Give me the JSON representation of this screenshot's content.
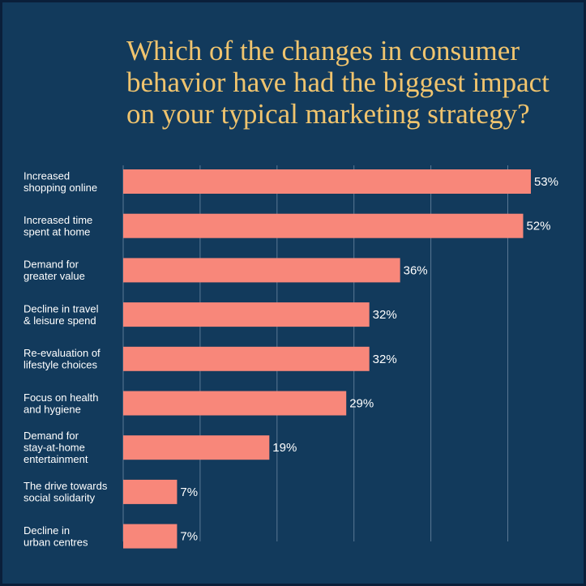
{
  "chart_data": {
    "type": "bar",
    "orientation": "horizontal",
    "title_lines": [
      "Which of the changes in consumer",
      "behavior have had the biggest impact",
      "on your typical marketing strategy?"
    ],
    "categories": [
      [
        "Increased",
        "shopping online"
      ],
      [
        "Increased time",
        "spent at home"
      ],
      [
        "Demand for",
        "greater value"
      ],
      [
        "Decline in travel",
        "& leisure spend"
      ],
      [
        "Re-evaluation of",
        "lifestyle choices"
      ],
      [
        "Focus on health",
        "and hygiene"
      ],
      [
        "Demand for",
        "stay-at-home",
        "entertainment"
      ],
      [
        "The drive towards",
        "social solidarity"
      ],
      [
        "Decline in",
        "urban centres"
      ]
    ],
    "values": [
      53,
      52,
      36,
      32,
      32,
      29,
      19,
      7,
      7
    ],
    "value_labels": [
      "53%",
      "52%",
      "36%",
      "32%",
      "32%",
      "29%",
      "19%",
      "7%",
      "7%"
    ],
    "xlim": [
      0,
      50
    ],
    "grid": true,
    "bar_color": "#f8877a",
    "background_color": "#123a5c",
    "title_color": "#f0c46e",
    "text_color": "#ffffff",
    "grid_color": "#5a7894"
  }
}
